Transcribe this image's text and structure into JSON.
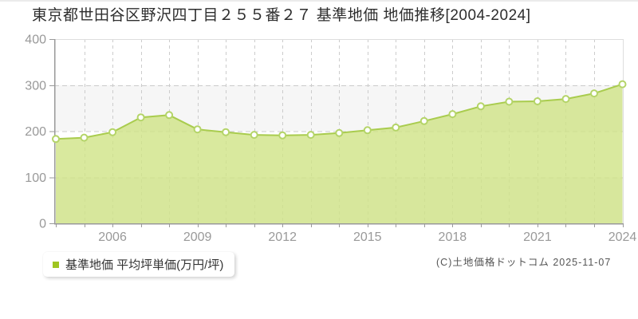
{
  "page": {
    "title": "東京都世田谷区野沢四丁目２５５番２７ 基準地価 地価推移[2004-2024]",
    "copyright": "(C)土地価格ドットコム 2025-11-07"
  },
  "legend": {
    "marker_color": "#9fc521",
    "label": "基準地価 平均坪単価(万円/坪)"
  },
  "chart_data": {
    "type": "area",
    "title": "東京都世田谷区野沢四丁目２５５番２７ 基準地価 地価推移[2004-2024]",
    "series_name": "基準地価 平均坪単価(万円/坪)",
    "unit": "万円/坪",
    "x": [
      2004,
      2005,
      2006,
      2007,
      2008,
      2009,
      2010,
      2011,
      2012,
      2013,
      2014,
      2015,
      2016,
      2017,
      2018,
      2019,
      2020,
      2021,
      2022,
      2023,
      2024
    ],
    "values": [
      183,
      186,
      198,
      230,
      235,
      204,
      198,
      192,
      191,
      192,
      196,
      202,
      208,
      222,
      237,
      254,
      264,
      265,
      270,
      282,
      302
    ],
    "ylim": [
      0,
      400
    ],
    "yticks": [
      0,
      100,
      200,
      300,
      400
    ],
    "xticks": [
      2006,
      2009,
      2012,
      2015,
      2018,
      2021,
      2024
    ],
    "grid": {
      "vertical": "dashed every year",
      "horizontal": "dashed every 100",
      "bands": "alternating gray/white per 100"
    },
    "legend_position": "bottom-left",
    "colors": {
      "area_fill": "#cfe386",
      "line": "#a9cc4e",
      "marker_fill": "#ffffff",
      "marker_stroke": "#b4d468",
      "band": "#f6f6f6",
      "grid": "#cccccc",
      "axis": "#999999",
      "plot_border": "#dddddd",
      "tick_label": "#999999"
    }
  }
}
